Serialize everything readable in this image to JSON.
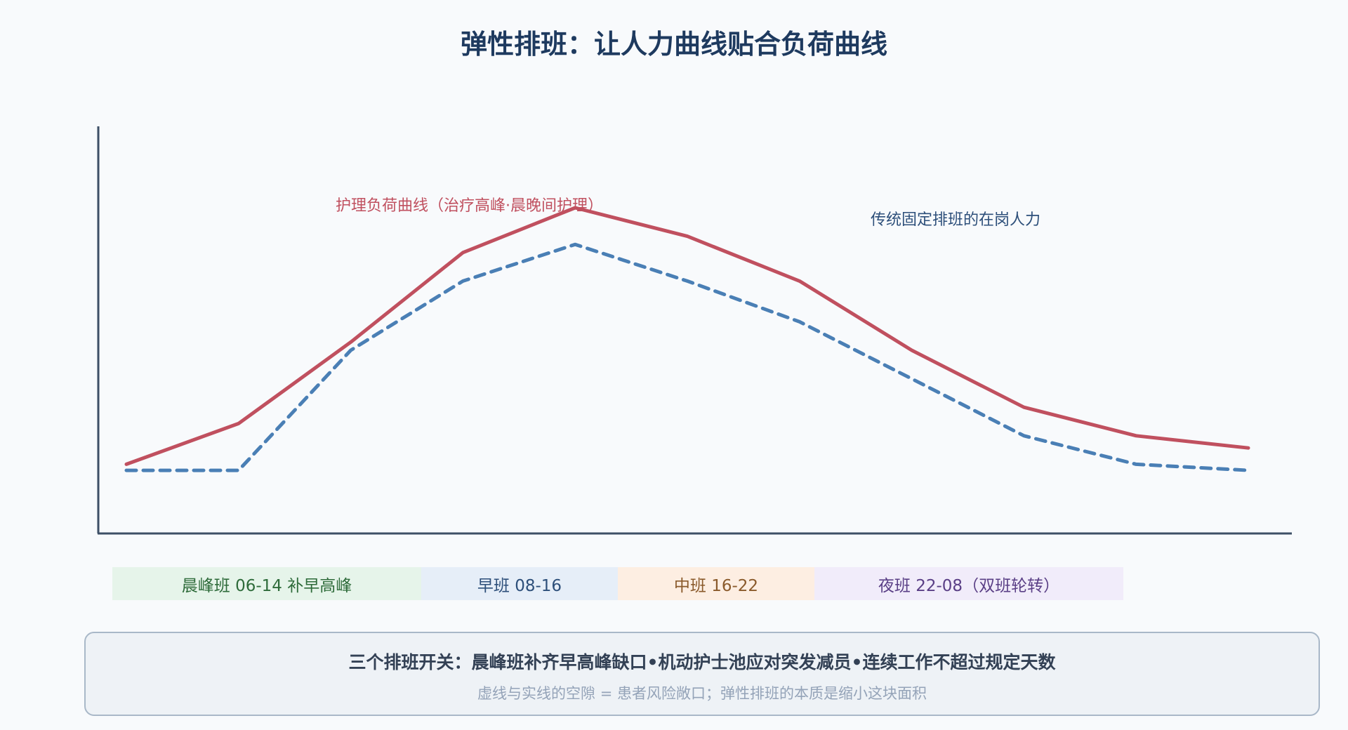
{
  "title": "弹性排班：让人力曲线贴合负荷曲线",
  "chart_data": {
    "type": "line",
    "x": [
      0,
      1,
      2,
      3,
      4,
      5,
      6,
      7,
      8,
      9,
      10
    ],
    "ylim": [
      0,
      100
    ],
    "grid": false,
    "series": [
      {
        "name": "护理负荷曲线（治疗高峰·晨晚间护理）",
        "style": "solid",
        "color": "#c0505f",
        "values": [
          17,
          27,
          47,
          69,
          80,
          73,
          62,
          45,
          31,
          24,
          21
        ]
      },
      {
        "name": "传统固定排班的在岗人力",
        "style": "dashed",
        "color": "#4a7fb5",
        "values": [
          15.5,
          15.5,
          45,
          62,
          71,
          62,
          52,
          38,
          24,
          17,
          15.5
        ]
      }
    ]
  },
  "shifts": [
    {
      "label": "晨峰班 06-14 补早高峰",
      "bg": "#e6f4ea",
      "fg": "#2e6b3a"
    },
    {
      "label": "早班 08-16",
      "bg": "#e6eef8",
      "fg": "#2d4f7a"
    },
    {
      "label": "中班 16-22",
      "bg": "#fdeee2",
      "fg": "#8a5a2b"
    },
    {
      "label": "夜班 22-08（双班轮转）",
      "bg": "#f1ecfa",
      "fg": "#5a3f86"
    }
  ],
  "note": {
    "main": "三个排班开关：晨峰班补齐早高峰缺口•机动护士池应对突发减员•连续工作不超过规定天数",
    "sub": "虚线与实线的空隙 = 患者风险敞口；弹性排班的本质是缩小这块面积"
  },
  "colors": {
    "axis": "#3d4f66",
    "title": "#1e3a5f"
  }
}
